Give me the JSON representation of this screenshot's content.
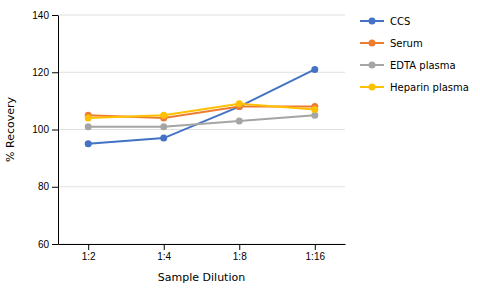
{
  "chart_data": {
    "type": "line",
    "categories": [
      "1:2",
      "1:4",
      "1:8",
      "1:16"
    ],
    "series": [
      {
        "name": "CCS",
        "color": "#4472C4",
        "marker": "circle",
        "values": [
          95,
          97,
          108,
          121
        ]
      },
      {
        "name": "Serum",
        "color": "#ED7D31",
        "marker": "circle",
        "values": [
          105,
          104,
          108,
          108
        ]
      },
      {
        "name": "EDTA plasma",
        "color": "#A5A5A5",
        "marker": "circle",
        "values": [
          101,
          101,
          103,
          105
        ]
      },
      {
        "name": "Heparin plasma",
        "color": "#FFC000",
        "marker": "circle",
        "values": [
          104,
          105,
          109,
          107
        ]
      }
    ],
    "xlabel": "Sample Dilution",
    "ylabel": "% Recovery",
    "ylim": [
      60,
      140
    ],
    "yticks": [
      60,
      80,
      100,
      120,
      140
    ],
    "grid": true,
    "legend": "right"
  }
}
